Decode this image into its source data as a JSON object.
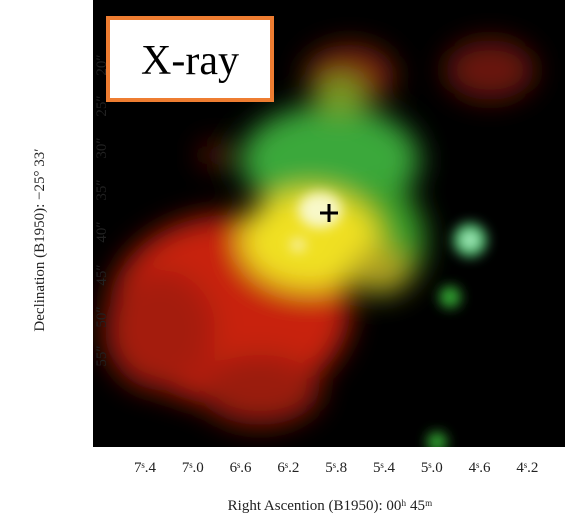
{
  "badge": "X-ray",
  "y_axis": {
    "title": "Declination (B1950): −25° 33′",
    "ticks": [
      "20″",
      "25″",
      "30″",
      "35″",
      "40″",
      "45″",
      "50″",
      "55″"
    ]
  },
  "x_axis": {
    "title": "Right Ascention (B1950): 00ʰ 45ᵐ",
    "ticks": [
      "7ˢ.4",
      "7ˢ.0",
      "6ˢ.6",
      "6ˢ.2",
      "5ˢ.8",
      "5ˢ.4",
      "5ˢ.0",
      "4ˢ.6",
      "4ˢ.2"
    ]
  }
}
